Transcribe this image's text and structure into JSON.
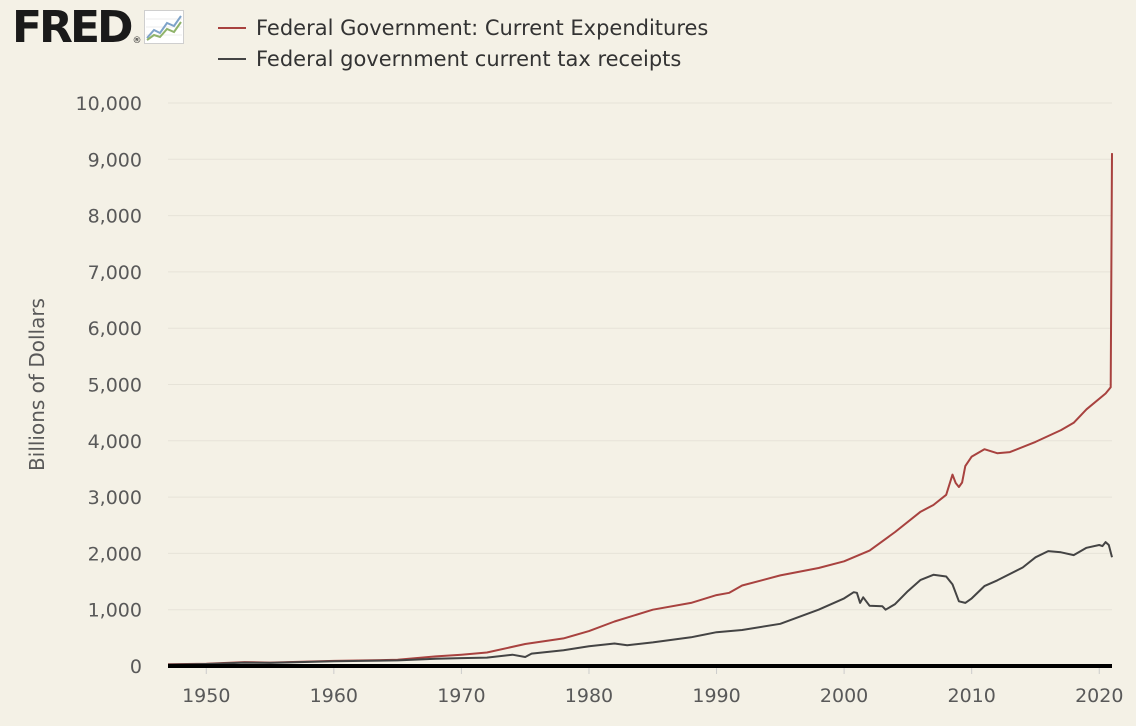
{
  "logo": {
    "text": "FRED",
    "registered": "®",
    "icon": "line-chart-icon"
  },
  "colors": {
    "background": "#f4f1e6",
    "expenditures": "#a8423f",
    "tax_receipts": "#444444",
    "grid": "#e6e3d8",
    "axis_text": "#595959"
  },
  "chart_data": {
    "type": "line",
    "title": "",
    "xlabel": "",
    "ylabel": "Billions of Dollars",
    "xlim": [
      1947,
      2021
    ],
    "ylim": [
      0,
      10000
    ],
    "yticks": [
      0,
      1000,
      2000,
      3000,
      4000,
      5000,
      6000,
      7000,
      8000,
      9000,
      10000
    ],
    "ytick_labels": [
      "0",
      "1,000",
      "2,000",
      "3,000",
      "4,000",
      "5,000",
      "6,000",
      "7,000",
      "8,000",
      "9,000",
      "10,000"
    ],
    "xticks": [
      1950,
      1960,
      1970,
      1980,
      1990,
      2000,
      2010,
      2020
    ],
    "xtick_labels": [
      "1950",
      "1960",
      "1970",
      "1980",
      "1990",
      "2000",
      "2010",
      "2020"
    ],
    "grid": true,
    "legend_position": "top-left",
    "series": [
      {
        "name": "Federal Government: Current Expenditures",
        "color": "#a8423f",
        "x": [
          1947,
          1950,
          1953,
          1955,
          1960,
          1965,
          1968,
          1970,
          1972,
          1975,
          1978,
          1980,
          1982,
          1985,
          1988,
          1990,
          1991,
          1992,
          1995,
          1998,
          2000,
          2002,
          2004,
          2006,
          2007,
          2008,
          2008.5,
          2008.75,
          2009,
          2009.25,
          2009.5,
          2010,
          2011,
          2012,
          2013,
          2015,
          2017,
          2018,
          2019,
          2020.5,
          2020.9,
          2021.0
        ],
        "values": [
          30,
          40,
          70,
          60,
          90,
          110,
          170,
          200,
          240,
          390,
          490,
          620,
          790,
          1000,
          1120,
          1260,
          1300,
          1430,
          1610,
          1740,
          1860,
          2050,
          2380,
          2740,
          2860,
          3040,
          3400,
          3250,
          3180,
          3260,
          3550,
          3720,
          3850,
          3780,
          3800,
          3980,
          4190,
          4320,
          4560,
          4840,
          4950,
          9110
        ]
      },
      {
        "name": "Federal government current tax receipts",
        "color": "#444444",
        "x": [
          1947,
          1950,
          1953,
          1955,
          1960,
          1965,
          1968,
          1970,
          1972,
          1974,
          1975,
          1975.5,
          1978,
          1980,
          1982,
          1983,
          1985,
          1988,
          1990,
          1992,
          1995,
          1998,
          2000,
          2000.75,
          2001,
          2001.25,
          2001.5,
          2002,
          2003,
          2003.25,
          2004,
          2005,
          2006,
          2007,
          2008,
          2008.5,
          2009,
          2009.5,
          2010,
          2011,
          2012,
          2014,
          2015,
          2016,
          2017,
          2018,
          2019,
          2020,
          2020.25,
          2020.5,
          2020.75,
          2021.0
        ],
        "values": [
          25,
          35,
          60,
          55,
          85,
          100,
          130,
          140,
          150,
          200,
          160,
          220,
          280,
          350,
          400,
          370,
          420,
          510,
          600,
          640,
          750,
          1000,
          1200,
          1310,
          1300,
          1120,
          1220,
          1070,
          1060,
          1000,
          1100,
          1330,
          1530,
          1620,
          1590,
          1450,
          1150,
          1120,
          1200,
          1420,
          1520,
          1750,
          1930,
          2040,
          2020,
          1970,
          2100,
          2150,
          2130,
          2200,
          2150,
          1930
        ]
      }
    ]
  }
}
